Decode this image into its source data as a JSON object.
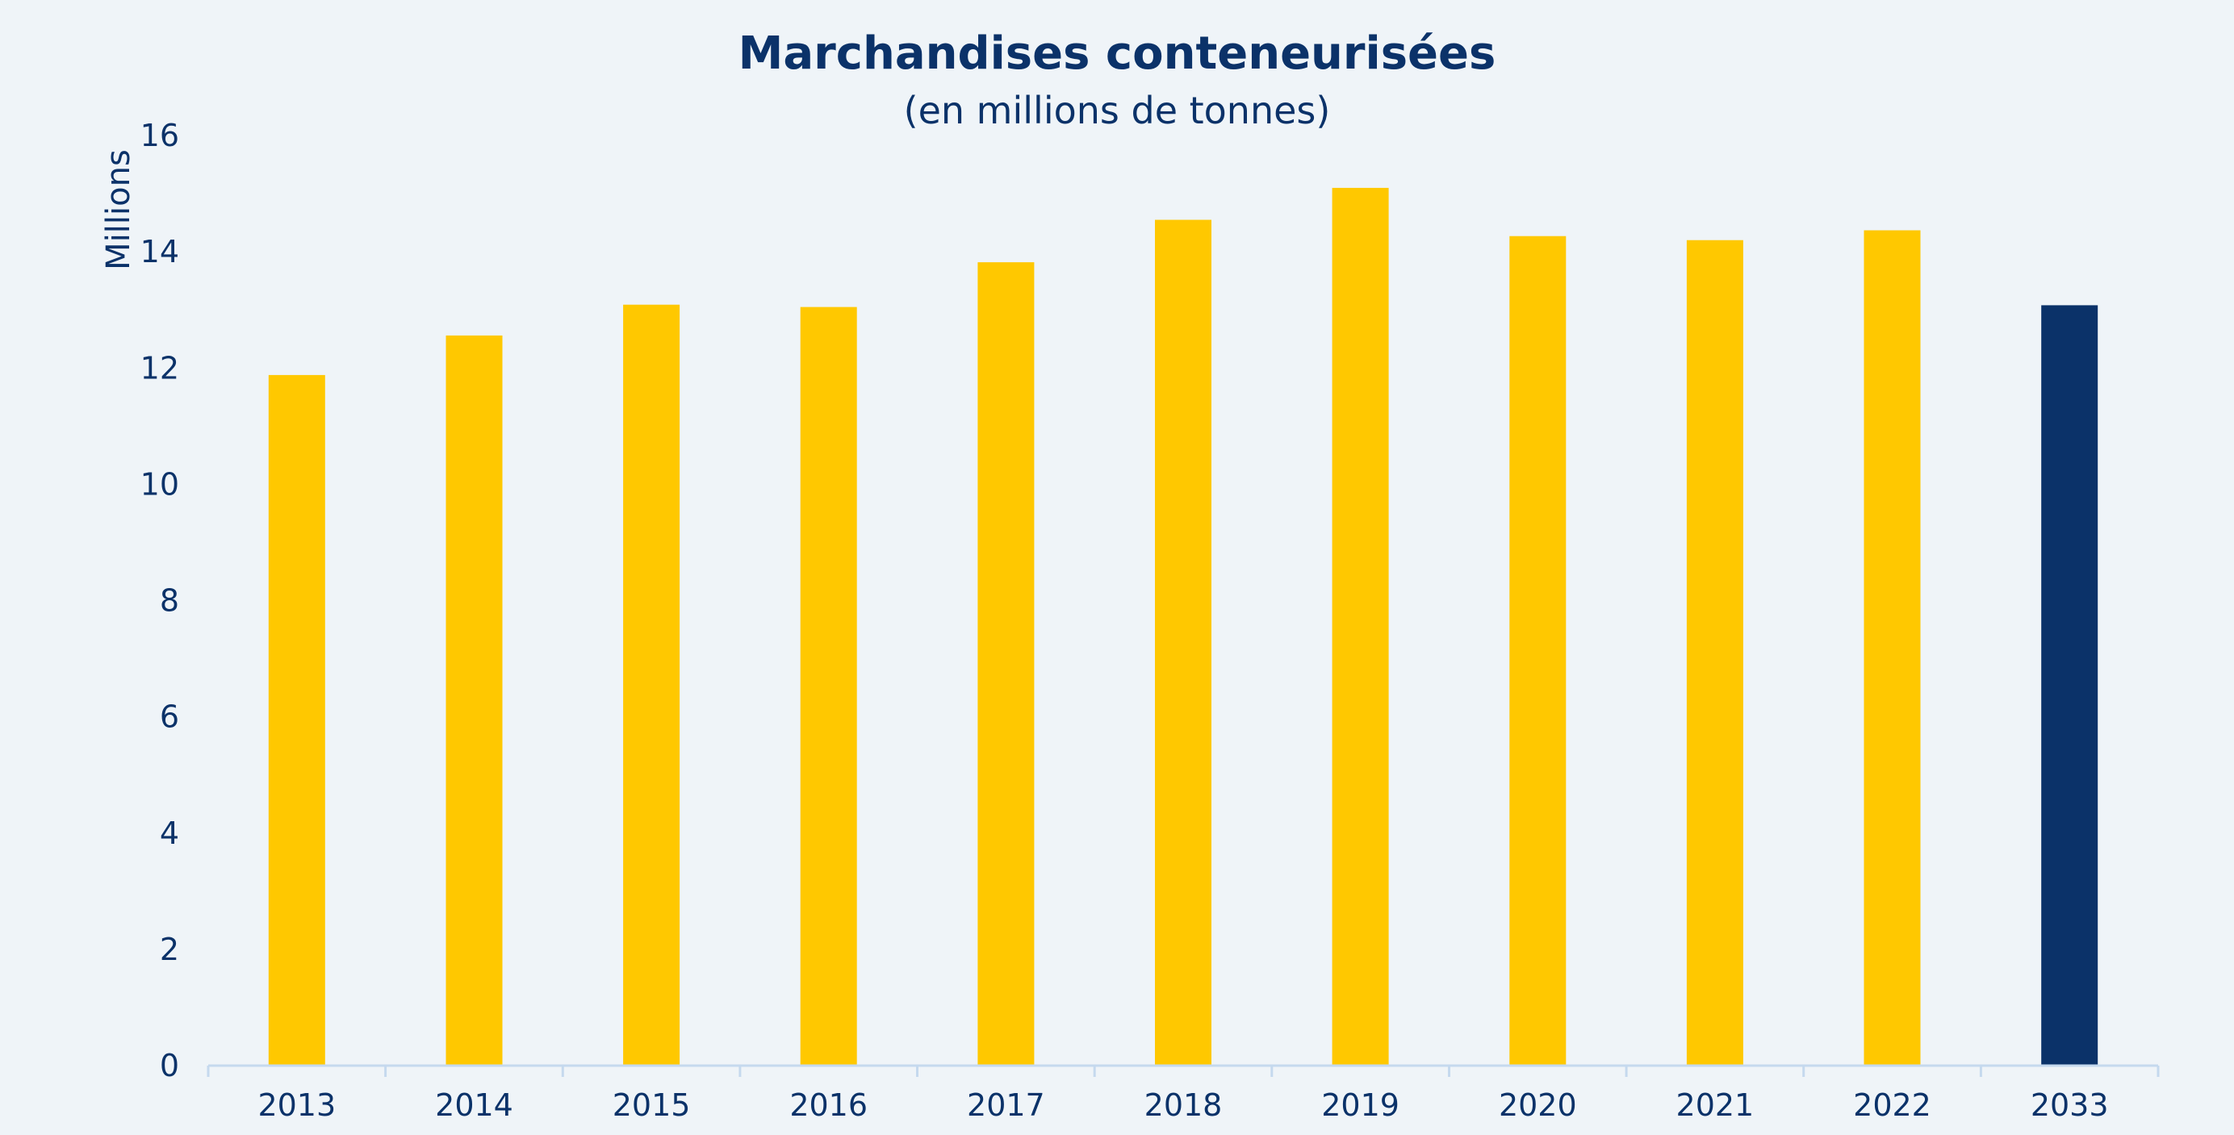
{
  "chart_data": {
    "type": "bar",
    "title": "Marchandises conteneurisées",
    "subtitle": "(en millions de tonnes)",
    "ylabel": "Millions",
    "xlabel": "",
    "categories": [
      "2013",
      "2014",
      "2015",
      "2016",
      "2017",
      "2018",
      "2019",
      "2020",
      "2021",
      "2022",
      "2033"
    ],
    "values": [
      11.88,
      12.56,
      13.09,
      13.05,
      13.82,
      14.55,
      15.1,
      14.27,
      14.2,
      14.37,
      13.08
    ],
    "ylim": [
      0,
      16
    ],
    "yticks": [
      "0",
      "2",
      "4",
      "6",
      "8",
      "10",
      "12",
      "14",
      "16"
    ],
    "grid": false,
    "legend": "none",
    "colors": {
      "bar": "#ffc800",
      "highlight_bar": "#0b3269",
      "text": "#0b3269",
      "axis": "#c5d9ee",
      "background": "#eff4f8"
    },
    "highlight_category": "2033"
  }
}
